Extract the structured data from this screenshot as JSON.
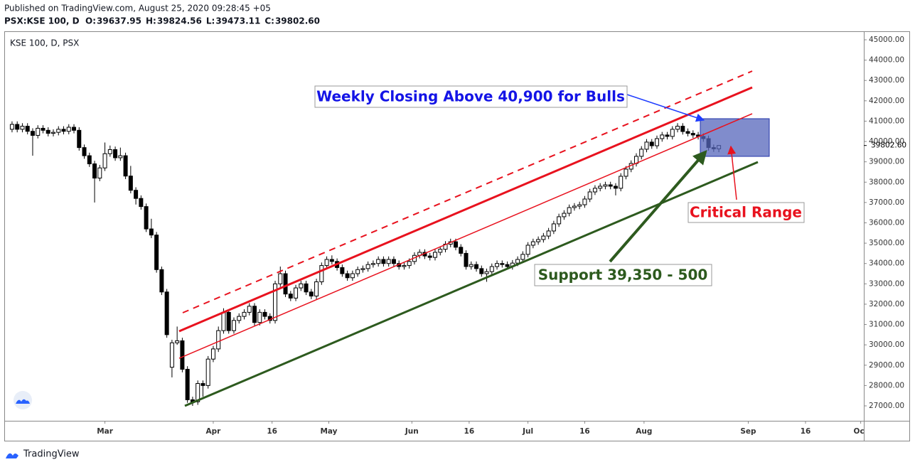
{
  "header": {
    "published": "Published on TradingView.com, August 25, 2020 09:28:45 +05",
    "symbol": "PSX:KSE 100, D",
    "ohlc": [
      {
        "key": "O:",
        "text": "39637.95"
      },
      {
        "key": "H:",
        "text": "39824.56"
      },
      {
        "key": "L:",
        "text": "39473.11"
      },
      {
        "key": "C:",
        "text": "39802.60"
      }
    ]
  },
  "footer": {
    "brand": "TradingView"
  },
  "chart_data": {
    "type": "candlestick",
    "legend": "KSE 100, D, PSX",
    "annotations": [
      "Weekly Closing Above 40,900 for Bulls",
      "Critical Range",
      "Support 39,350 - 500"
    ],
    "up_color": "#ffffff",
    "down_color": "#000000",
    "grid": false,
    "last_price": {
      "value": 39802.6,
      "label": "39802.60"
    },
    "xlim": [
      -1.37,
      165.1
    ],
    "xticks": [
      {
        "value": 18,
        "label": "Mar"
      },
      {
        "value": 39,
        "label": "Apr"
      },
      {
        "value": 50.4,
        "label": "16"
      },
      {
        "value": 61.4,
        "label": "May"
      },
      {
        "value": 77.5,
        "label": "Jun"
      },
      {
        "value": 88.6,
        "label": "16"
      },
      {
        "value": 100,
        "label": "Jul"
      },
      {
        "value": 111,
        "label": "16"
      },
      {
        "value": 122.5,
        "label": "Aug"
      },
      {
        "value": 142.7,
        "label": "Sep"
      },
      {
        "value": 153.8,
        "label": "16"
      },
      {
        "value": 164.5,
        "label": "Oct"
      }
    ],
    "ylim": [
      26266,
      45384
    ],
    "yticks": [
      {
        "value": 27000,
        "label": "27000.00"
      },
      {
        "value": 28000,
        "label": "28000.00"
      },
      {
        "value": 29000,
        "label": "29000.00"
      },
      {
        "value": 30000,
        "label": "30000.00"
      },
      {
        "value": 31000,
        "label": "31000.00"
      },
      {
        "value": 32000,
        "label": "32000.00"
      },
      {
        "value": 33000,
        "label": "33000.00"
      },
      {
        "value": 34000,
        "label": "34000.00"
      },
      {
        "value": 35000,
        "label": "35000.00"
      },
      {
        "value": 36000,
        "label": "36000.00"
      },
      {
        "value": 37000,
        "label": "37000.00"
      },
      {
        "value": 38000,
        "label": "38000.00"
      },
      {
        "value": 39000,
        "label": "39000.00"
      },
      {
        "value": 40000,
        "label": "40000.00"
      },
      {
        "value": 41000,
        "label": "41000.00"
      },
      {
        "value": 42000,
        "label": "42000.00"
      },
      {
        "value": 43000,
        "label": "43000.00"
      },
      {
        "value": 44000,
        "label": "44000.00"
      },
      {
        "value": 45000,
        "label": "45000.00"
      }
    ],
    "open": [
      40600,
      40840,
      40600,
      40750,
      40500,
      40300,
      40650,
      40550,
      40400,
      40450,
      40600,
      40500,
      40700,
      40550,
      39700,
      39300,
      38900,
      38200,
      38700,
      39400,
      39600,
      39200,
      39300,
      38300,
      37600,
      37200,
      36800,
      35700,
      35400,
      33700,
      32600,
      28900,
      30100,
      30200,
      28800,
      27300,
      27200,
      28100,
      28000,
      29300,
      29800,
      30700,
      31600,
      30700,
      31200,
      31400,
      31600,
      31900,
      31100,
      31600,
      31400,
      31200,
      33000,
      33500,
      32500,
      32300,
      32800,
      33000,
      32600,
      32400,
      33100,
      33900,
      34200,
      34100,
      33800,
      33500,
      33300,
      33500,
      33700,
      33750,
      33950,
      34000,
      34200,
      34000,
      34200,
      34000,
      33850,
      33900,
      34100,
      34400,
      34550,
      34370,
      34300,
      34550,
      34700,
      34950,
      35070,
      34800,
      34500,
      33850,
      33950,
      33750,
      33500,
      33600,
      33850,
      34000,
      33950,
      33850,
      34020,
      34200,
      34450,
      34900,
      35070,
      35180,
      35350,
      35600,
      35950,
      36300,
      36470,
      36750,
      36820,
      36890,
      37170,
      37520,
      37700,
      37800,
      37870,
      37800,
      37700,
      38290,
      38640,
      38920,
      39270,
      39620,
      39970,
      39790,
      40140,
      40320,
      40250,
      40600,
      40750,
      40490,
      40400,
      40320,
      40250,
      40140,
      39700,
      39637.95
    ],
    "high": [
      40990,
      40990,
      40900,
      40900,
      40650,
      40800,
      40800,
      40700,
      40600,
      40750,
      40750,
      40850,
      40850,
      40700,
      39850,
      39450,
      39050,
      38850,
      39950,
      39800,
      39750,
      39700,
      39450,
      38800,
      37750,
      37350,
      36950,
      36200,
      35550,
      33850,
      32750,
      30250,
      30900,
      30350,
      28950,
      27450,
      28250,
      28250,
      29450,
      29950,
      30900,
      31800,
      31750,
      31350,
      31550,
      31750,
      32050,
      32050,
      31750,
      31750,
      31550,
      33150,
      33850,
      33650,
      32650,
      32950,
      33150,
      33150,
      32750,
      33250,
      34050,
      34350,
      34400,
      34250,
      33950,
      33650,
      33650,
      33850,
      33900,
      34100,
      34150,
      34350,
      34350,
      34350,
      34350,
      34150,
      34050,
      34250,
      34550,
      34700,
      34700,
      34520,
      34700,
      34850,
      35100,
      35220,
      35220,
      34950,
      34650,
      34100,
      34100,
      33900,
      33750,
      34000,
      34150,
      34150,
      34100,
      34170,
      34350,
      34600,
      35050,
      35220,
      35330,
      35500,
      35750,
      36100,
      36450,
      36620,
      36900,
      36970,
      37040,
      37320,
      37670,
      37850,
      37950,
      38020,
      38020,
      37950,
      38440,
      38790,
      39070,
      39420,
      39770,
      40120,
      40120,
      40290,
      40470,
      40470,
      40750,
      40900,
      40900,
      40640,
      40550,
      40470,
      40400,
      40290,
      39850,
      39824.56
    ],
    "low": [
      40450,
      40450,
      40450,
      40350,
      39300,
      40150,
      40400,
      40250,
      40250,
      40300,
      40350,
      40350,
      40400,
      39550,
      39150,
      38750,
      37000,
      38050,
      38550,
      39250,
      39050,
      39050,
      38150,
      37450,
      36900,
      36650,
      35550,
      35250,
      33550,
      32450,
      30350,
      28400,
      30000,
      28650,
      27150,
      27000,
      27050,
      27450,
      27850,
      29150,
      29650,
      30550,
      30550,
      30550,
      31050,
      31250,
      31450,
      30950,
      30950,
      31250,
      31050,
      31050,
      32850,
      32350,
      32150,
      32150,
      32650,
      32450,
      32250,
      32250,
      32950,
      33750,
      33950,
      33650,
      33350,
      33150,
      33150,
      33350,
      33550,
      33600,
      33800,
      33850,
      33850,
      33850,
      33850,
      33700,
      33700,
      33750,
      33950,
      34250,
      34220,
      34150,
      34150,
      34400,
      34550,
      34800,
      34650,
      34350,
      33700,
      33700,
      33600,
      33350,
      33100,
      33450,
      33700,
      33800,
      33700,
      33700,
      33870,
      34050,
      34300,
      34750,
      34920,
      35030,
      35200,
      35450,
      35800,
      36150,
      36320,
      36600,
      36670,
      36740,
      37020,
      37370,
      37550,
      37650,
      37650,
      37350,
      37550,
      38140,
      38490,
      38770,
      39120,
      39470,
      39640,
      39640,
      39990,
      40100,
      40100,
      40450,
      40340,
      40250,
      40170,
      40100,
      39990,
      39550,
      39490,
      39473.11
    ],
    "close": [
      40840,
      40600,
      40750,
      40500,
      40300,
      40650,
      40550,
      40400,
      40450,
      40600,
      40500,
      40700,
      40550,
      39700,
      39300,
      38900,
      38200,
      38700,
      39400,
      39600,
      39200,
      39300,
      38300,
      37600,
      37200,
      36800,
      35700,
      35400,
      33700,
      32600,
      30500,
      30100,
      30200,
      28800,
      27300,
      27200,
      28100,
      28000,
      29300,
      29800,
      30700,
      31600,
      30700,
      31200,
      31400,
      31600,
      31900,
      31100,
      31600,
      31400,
      31200,
      33000,
      33500,
      32500,
      32300,
      32800,
      33000,
      32600,
      32400,
      33100,
      33900,
      34200,
      34100,
      33800,
      33500,
      33300,
      33500,
      33700,
      33750,
      33950,
      34000,
      34200,
      34000,
      34200,
      34000,
      33850,
      33900,
      34100,
      34400,
      34550,
      34370,
      34300,
      34550,
      34700,
      34950,
      35070,
      34800,
      34500,
      33850,
      33950,
      33750,
      33500,
      33600,
      33850,
      34000,
      33950,
      33850,
      34020,
      34200,
      34450,
      34900,
      35070,
      35180,
      35350,
      35600,
      35950,
      36300,
      36470,
      36750,
      36820,
      36890,
      37170,
      37520,
      37700,
      37800,
      37870,
      37800,
      37700,
      38290,
      38640,
      38920,
      39270,
      39620,
      39970,
      39790,
      40140,
      40320,
      40250,
      40600,
      40750,
      40490,
      40400,
      40320,
      40250,
      40140,
      39700,
      39640,
      39802.6
    ]
  }
}
